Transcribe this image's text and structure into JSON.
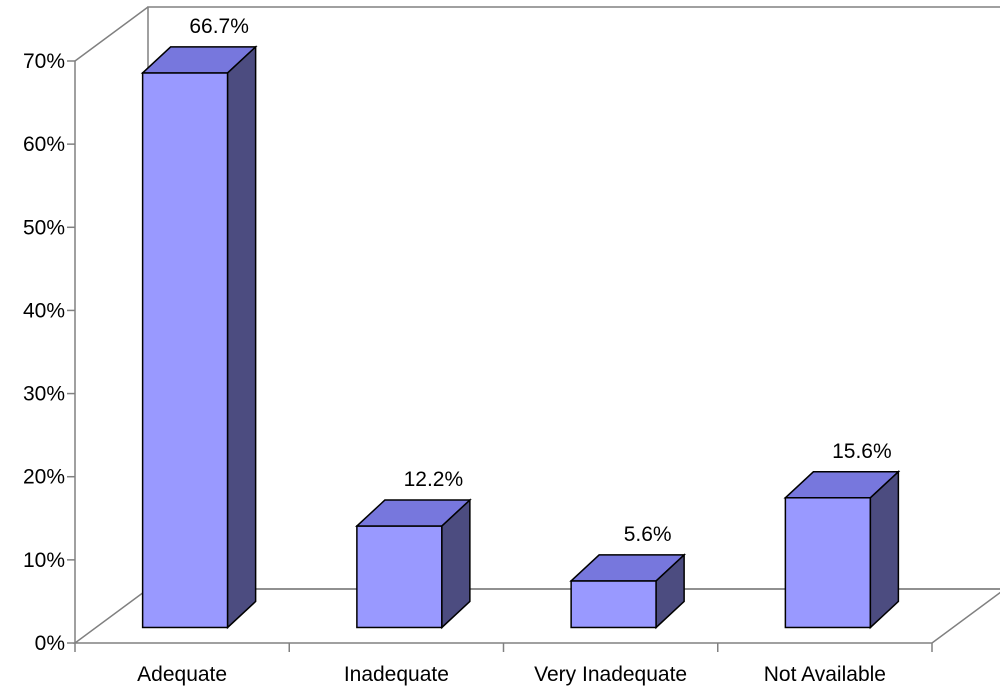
{
  "chart_data": {
    "type": "bar",
    "three_d": true,
    "categories": [
      "Adequate",
      "Inadequate",
      "Very Inadequate",
      "Not Available"
    ],
    "values": [
      66.7,
      12.2,
      5.6,
      15.6
    ],
    "data_labels": [
      "66.7%",
      "12.2%",
      "5.6%",
      "15.6%"
    ],
    "title": "",
    "xlabel": "",
    "ylabel": "",
    "ylim": [
      0,
      70
    ],
    "yticks": [
      0,
      10,
      20,
      30,
      40,
      50,
      60,
      70
    ],
    "ytick_labels": [
      "0%",
      "10%",
      "20%",
      "30%",
      "40%",
      "50%",
      "60%",
      "70%"
    ],
    "grid": false,
    "legend": "none",
    "colors": {
      "bar_front": "#9999ff",
      "bar_top": "#7777dd",
      "bar_side": "#4c4c80",
      "axis": "#808080",
      "outline": "#000000"
    }
  }
}
